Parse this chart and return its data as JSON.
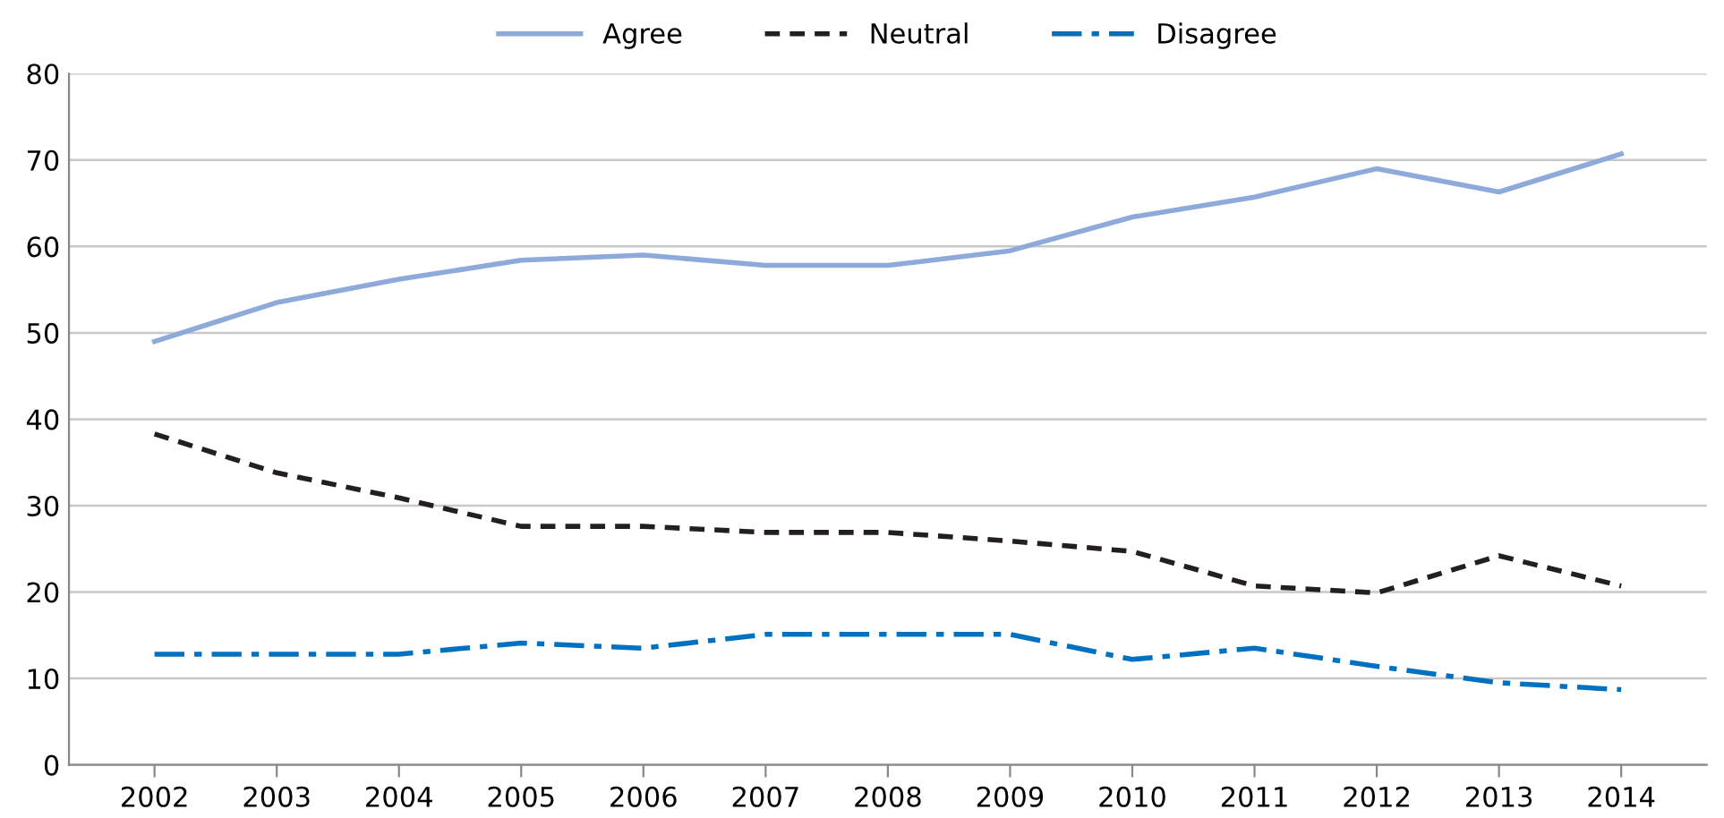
{
  "chart_data": {
    "type": "line",
    "categories": [
      "2002",
      "2003",
      "2004",
      "2005",
      "2006",
      "2007",
      "2008",
      "2009",
      "2010",
      "2011",
      "2012",
      "2013",
      "2014"
    ],
    "series": [
      {
        "name": "Agree",
        "color": "#8eaadb",
        "line_style": "solid",
        "values": [
          49,
          53.5,
          56.2,
          58.4,
          59,
          57.8,
          57.8,
          59.5,
          63.4,
          65.7,
          69,
          66.3,
          70.7
        ]
      },
      {
        "name": "Neutral",
        "color": "#231f20",
        "line_style": "dashed",
        "values": [
          38.3,
          33.8,
          30.9,
          27.6,
          27.6,
          26.9,
          26.9,
          25.9,
          24.7,
          20.7,
          19.9,
          24.2,
          20.7
        ]
      },
      {
        "name": "Disagree",
        "color": "#0070c0",
        "line_style": "dashdot",
        "values": [
          12.8,
          12.8,
          12.8,
          14.1,
          13.5,
          15.1,
          15.1,
          15.1,
          12.2,
          13.5,
          11.4,
          9.5,
          8.7
        ]
      }
    ],
    "ylim": [
      0,
      80
    ],
    "yticks": [
      0,
      10,
      20,
      30,
      40,
      50,
      60,
      70,
      80
    ],
    "grid": "y",
    "legend": "top",
    "marker": "none"
  }
}
